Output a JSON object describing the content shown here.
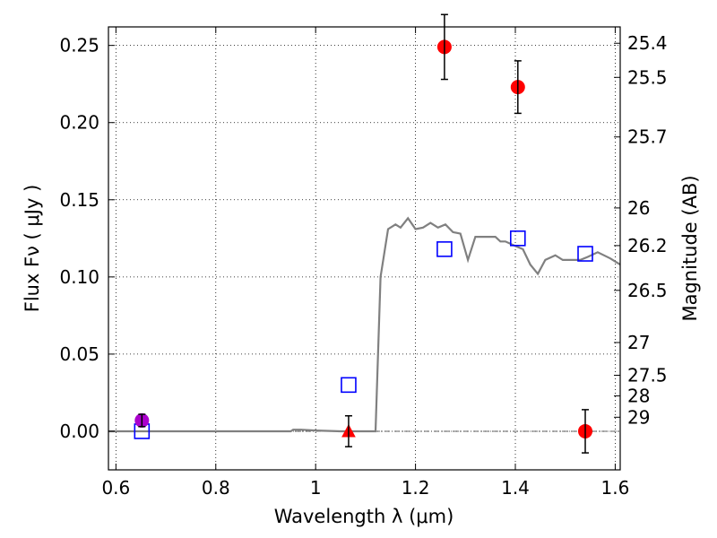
{
  "chart_data": {
    "type": "scatter",
    "xlabel": "Wavelength  λ (μm)",
    "ylabel": "Flux  Fν  ( μJy )",
    "ylabel_right": "Magnitude (AB)",
    "xlim": [
      0.585,
      1.61
    ],
    "ylim": [
      -0.025,
      0.262
    ],
    "grid": true,
    "x_ticks": [
      0.6,
      0.8,
      1.0,
      1.2,
      1.4,
      1.6
    ],
    "x_tick_labels": [
      "0.6",
      "0.8",
      "1",
      "1.2",
      "1.4",
      "1.6"
    ],
    "y_ticks": [
      0.0,
      0.05,
      0.1,
      0.15,
      0.2,
      0.25
    ],
    "y_tick_labels": [
      "0.00",
      "0.05",
      "0.10",
      "0.15",
      "0.20",
      "0.25"
    ],
    "mag_ticks": [
      {
        "label": "25.4",
        "flux": 0.2514
      },
      {
        "label": "25.5",
        "flux": 0.2293
      },
      {
        "label": "25.7",
        "flux": 0.1907
      },
      {
        "label": "26",
        "flux": 0.1447
      },
      {
        "label": "26.2",
        "flux": 0.1203
      },
      {
        "label": "26.5",
        "flux": 0.0913
      },
      {
        "label": "27",
        "flux": 0.0575
      },
      {
        "label": "27.5",
        "flux": 0.0363
      },
      {
        "label": "28",
        "flux": 0.0229
      },
      {
        "label": "29",
        "flux": 0.0091
      }
    ],
    "series": [
      {
        "name": "model-sed",
        "kind": "line",
        "color": "#808080",
        "points": [
          [
            0.585,
            0.0
          ],
          [
            0.95,
            0.0
          ],
          [
            0.955,
            0.001
          ],
          [
            0.97,
            0.001
          ],
          [
            1.0,
            0.0005
          ],
          [
            1.05,
            0.0
          ],
          [
            1.12,
            0.0
          ],
          [
            1.13,
            0.1
          ],
          [
            1.145,
            0.131
          ],
          [
            1.16,
            0.134
          ],
          [
            1.17,
            0.132
          ],
          [
            1.185,
            0.138
          ],
          [
            1.2,
            0.131
          ],
          [
            1.215,
            0.132
          ],
          [
            1.23,
            0.135
          ],
          [
            1.245,
            0.132
          ],
          [
            1.26,
            0.134
          ],
          [
            1.275,
            0.129
          ],
          [
            1.29,
            0.128
          ],
          [
            1.305,
            0.111
          ],
          [
            1.32,
            0.126
          ],
          [
            1.36,
            0.126
          ],
          [
            1.37,
            0.123
          ],
          [
            1.38,
            0.123
          ],
          [
            1.4,
            0.12
          ],
          [
            1.415,
            0.118
          ],
          [
            1.43,
            0.108
          ],
          [
            1.445,
            0.102
          ],
          [
            1.46,
            0.111
          ],
          [
            1.48,
            0.114
          ],
          [
            1.495,
            0.111
          ],
          [
            1.53,
            0.111
          ],
          [
            1.545,
            0.113
          ],
          [
            1.565,
            0.116
          ],
          [
            1.59,
            0.112
          ],
          [
            1.61,
            0.108
          ]
        ]
      },
      {
        "name": "model-bands",
        "kind": "open-square",
        "color": "#0000ff",
        "points": [
          [
            0.652,
            0.0
          ],
          [
            1.066,
            0.03
          ],
          [
            1.258,
            0.118
          ],
          [
            1.405,
            0.125
          ],
          [
            1.54,
            0.115
          ]
        ]
      },
      {
        "name": "observed-detections",
        "kind": "filled-circle",
        "color": "#ff0000",
        "points": [
          {
            "x": 1.258,
            "y": 0.249,
            "err": 0.021
          },
          {
            "x": 1.405,
            "y": 0.223,
            "err": 0.017
          },
          {
            "x": 1.54,
            "y": 0.0,
            "err": 0.014
          }
        ]
      },
      {
        "name": "observed-upper-limit",
        "kind": "filled-triangle",
        "color": "#ff0000",
        "points": [
          {
            "x": 1.066,
            "y": 0.0,
            "err": 0.01
          }
        ]
      },
      {
        "name": "observed-optical",
        "kind": "filled-circle",
        "color": "#aa00cc",
        "points": [
          {
            "x": 0.652,
            "y": 0.007,
            "err": 0.004
          }
        ]
      }
    ]
  }
}
